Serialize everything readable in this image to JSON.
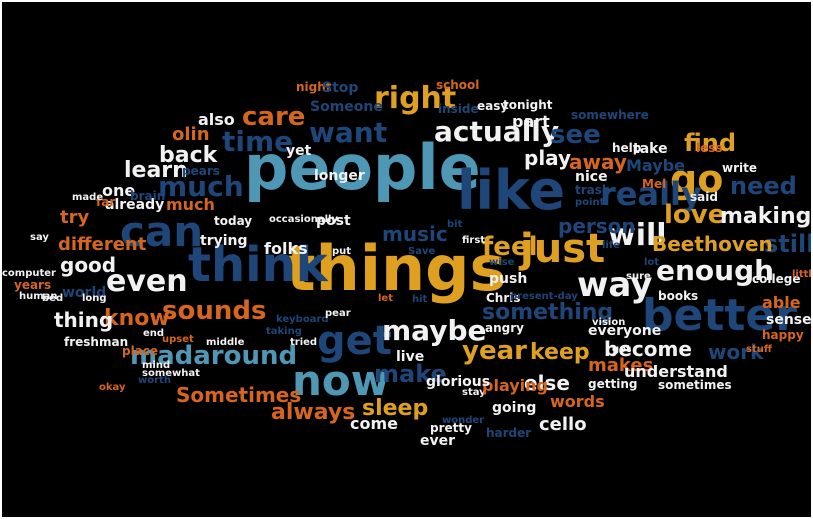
{
  "palette": {
    "background": "#000000",
    "white": "#f2f2f2",
    "teal": "#4e98b6",
    "orange": "#d6651e",
    "gold": "#dfa021",
    "navy": "#1e4678",
    "blue": "#2f6aa0"
  },
  "words": [
    "people",
    "things",
    "like",
    "think",
    "can",
    "better",
    "get",
    "now",
    "just",
    "go",
    "even",
    "want",
    "time",
    "right",
    "care",
    "much",
    "sounds",
    "madaround",
    "way",
    "will",
    "maybe",
    "year",
    "really",
    "love",
    "keep",
    "make",
    "feel",
    "enough",
    "actually",
    "see",
    "find",
    "need",
    "still",
    "Beethoven",
    "making",
    "music",
    "something",
    "learn",
    "back",
    "know",
    "good",
    "thing",
    "become",
    "work",
    "always",
    "sleep",
    "Sometimes",
    "else",
    "makes",
    "understand",
    "person",
    "away",
    "play",
    "part",
    "also",
    "one",
    "much",
    "try",
    "different",
    "olin",
    "night",
    "Stop",
    "Someone",
    "inside",
    "school",
    "easy",
    "tonight",
    "somewhere",
    "help",
    "take",
    "less",
    "Maybe",
    "write",
    "Mel",
    "said",
    "nice",
    "trash",
    "point",
    "yet",
    "longer",
    "pears",
    "already",
    "far",
    "made",
    "brain",
    "today",
    "trying",
    "folks",
    "post",
    "occasionally",
    "put",
    "bit",
    "first",
    "Save",
    "push",
    "Chris",
    "present-day",
    "sure",
    "lot",
    "college",
    "little",
    "books",
    "able",
    "sense",
    "happy",
    "stuff",
    "sometimes",
    "getting",
    "everyone",
    "angry",
    "vision",
    "live",
    "hit",
    "let",
    "keyboard",
    "pear",
    "tried",
    "taking",
    "end",
    "upset",
    "middle",
    "mind",
    "worth",
    "okay",
    "somewhat",
    "place",
    "world",
    "years",
    "human",
    "computer",
    "say",
    "bed",
    "long",
    "freshman",
    "stay",
    "playing",
    "glorious",
    "going",
    "words",
    "wonder",
    "pretty",
    "ever",
    "come",
    "harder",
    "cello",
    "got",
    "life",
    "wise"
  ]
}
